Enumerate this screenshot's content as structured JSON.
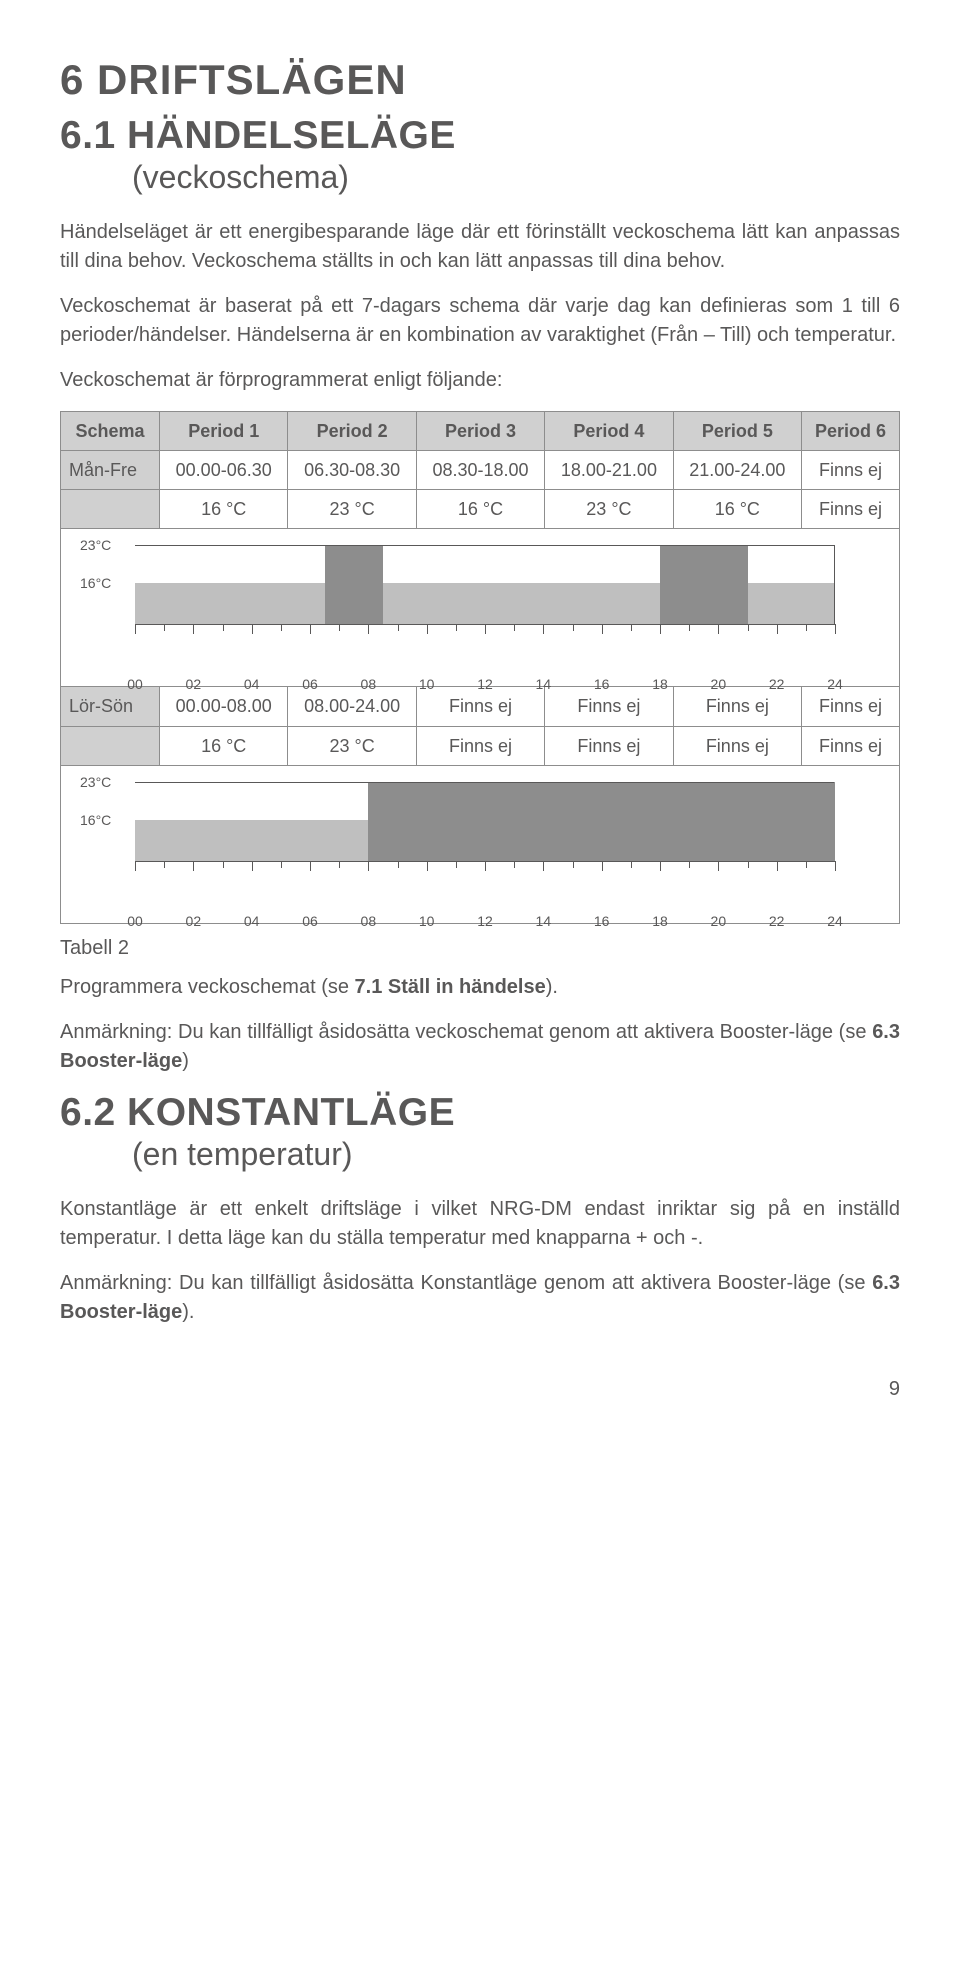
{
  "h1": "6 DRIFTSLÄGEN",
  "section_6_1": {
    "title": "6.1 HÄNDELSELÄGE",
    "subtitle": "(veckoschema)",
    "p1": "Händelseläget är ett energibesparande läge där ett förinställt veckoschema lätt kan anpassas till dina behov. Veckoschema ställts in och kan lätt anpassas till dina behov.",
    "p2": "Veckoschemat är baserat på ett 7-dagars schema där varje dag kan definieras som 1 till 6 perioder/händelser. Händelserna är en kombination av varaktighet (Från – Till) och temperatur.",
    "p3": "Veckoschemat är förprogrammerat enligt följande:"
  },
  "table": {
    "headers": [
      "Schema",
      "Period 1",
      "Period 2",
      "Period 3",
      "Period 4",
      "Period 5",
      "Period 6"
    ],
    "rows_monfri_times": [
      "Mån-Fre",
      "00.00-06.30",
      "06.30-08.30",
      "08.30-18.00",
      "18.00-21.00",
      "21.00-24.00",
      "Finns ej"
    ],
    "rows_monfri_temps": [
      "",
      "16 °C",
      "23 °C",
      "16 °C",
      "23 °C",
      "16 °C",
      "Finns ej"
    ],
    "rows_lorson_times": [
      "Lör-Sön",
      "00.00-08.00",
      "08.00-24.00",
      "Finns ej",
      "Finns ej",
      "Finns ej",
      "Finns ej"
    ],
    "rows_lorson_temps": [
      "",
      "16 °C",
      "23 °C",
      "Finns ej",
      "Finns ej",
      "Finns ej",
      "Finns ej"
    ]
  },
  "chart": {
    "x_ticks": [
      "00",
      "02",
      "04",
      "06",
      "08",
      "10",
      "12",
      "14",
      "16",
      "18",
      "20",
      "22",
      "24"
    ],
    "y_labels": [
      "23°C",
      "16°C"
    ],
    "background_color": "#bfbfbf",
    "bar_color": "#8d8d8d",
    "line_color": "#595858",
    "monfri_high_periods": [
      [
        6.5,
        8.5
      ],
      [
        18,
        21
      ]
    ],
    "lorson_high_periods": [
      [
        8,
        24
      ]
    ],
    "x_range": [
      0,
      24
    ]
  },
  "after_table": {
    "caption": "Tabell 2",
    "p1_pre": "Programmera veckoschemat (se ",
    "p1_bold": "7.1 Ställ in händelse",
    "p1_post": ").",
    "p2_pre": "Anmärkning: Du kan tillfälligt åsidosätta veckoschemat genom att aktivera Booster-läge (se ",
    "p2_bold": "6.3 Booster-läge",
    "p2_post": ")"
  },
  "section_6_2": {
    "title": "6.2 KONSTANTLÄGE",
    "subtitle": "(en temperatur)",
    "p1": "Konstantläge är ett enkelt driftsläge i vilket NRG-DM endast inriktar sig på en inställd temperatur. I detta läge kan du ställa temperatur med knapparna + och -.",
    "p2_pre": "Anmärkning: Du kan tillfälligt åsidosätta Konstantläge genom att aktivera Booster-läge (se ",
    "p2_bold": "6.3 Booster-läge",
    "p2_post": ")."
  },
  "page_number": "9"
}
